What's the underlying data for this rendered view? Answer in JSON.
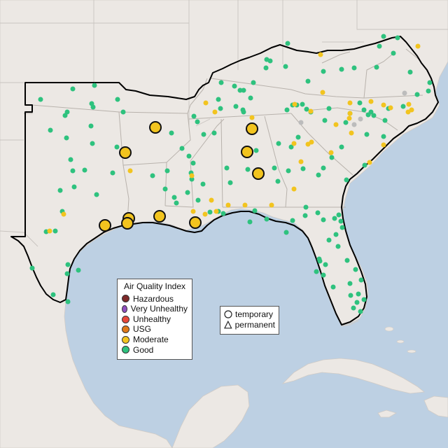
{
  "map": {
    "legend_aqi": {
      "title": "Air Quality Index",
      "items": [
        {
          "label": "Hazardous",
          "color": "#7e2a2a"
        },
        {
          "label": "Very Unhealthy",
          "color": "#8f4fbf"
        },
        {
          "label": "Unhealthy",
          "color": "#e8483a"
        },
        {
          "label": "USG",
          "color": "#e07a1a"
        },
        {
          "label": "Moderate",
          "color": "#f2c41f"
        },
        {
          "label": "Good",
          "color": "#2ec27e"
        }
      ]
    },
    "legend_type": {
      "items": [
        {
          "label": "temporary",
          "shape": "circle-icon"
        },
        {
          "label": "permanent",
          "shape": "triangle-icon"
        }
      ]
    },
    "colors": {
      "water": "#bdd0e3",
      "land": "#ece8e4",
      "good": "#2ec27e",
      "moderate": "#f2c41f",
      "unknown": "#bcbcbc",
      "boundary": "#000000"
    }
  }
}
